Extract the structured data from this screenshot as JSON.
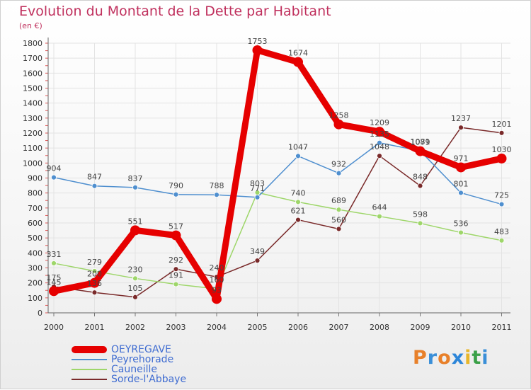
{
  "header": {
    "title": "Evolution du Montant de la Dette par Habitant",
    "subtitle": "(en €)"
  },
  "brand": {
    "letters": [
      "P",
      "r",
      "o",
      "x",
      "i",
      "t",
      "i"
    ],
    "colors": [
      "#e8802a",
      "#3a8fd8",
      "#e8802a",
      "#2d86d9",
      "#e8b62a",
      "#3aa048",
      "#3a8fd8"
    ]
  },
  "chart_data": {
    "type": "line",
    "title": "Evolution du Montant de la Dette par Habitant",
    "subtitle": "(en €)",
    "xlabel": "",
    "ylabel": "",
    "ylim": [
      0,
      1800
    ],
    "yticks": [
      0,
      100,
      200,
      300,
      400,
      500,
      600,
      700,
      800,
      900,
      1000,
      1100,
      1200,
      1300,
      1400,
      1500,
      1600,
      1700,
      1800
    ],
    "x": [
      "2000",
      "2001",
      "2002",
      "2003",
      "2004",
      "2005",
      "2006",
      "2007",
      "2008",
      "2009",
      "2010",
      "2011"
    ],
    "grid": true,
    "legend_position": "bottom-left",
    "series": [
      {
        "name": "OEYREGAVE",
        "color": "#e60000",
        "values": [
          145,
          200,
          551,
          517,
          93,
          1753,
          1674,
          1258,
          1209,
          1079,
          971,
          1030
        ],
        "labels": [
          "145",
          "200",
          "551",
          "517",
          "93",
          "1753",
          "1674",
          "1258",
          "1209",
          "1079",
          "971",
          "1030"
        ]
      },
      {
        "name": "Peyrehorade",
        "color": "#4f8fcf",
        "values": [
          904,
          847,
          837,
          790,
          788,
          771,
          1047,
          932,
          1135,
          1081,
          801,
          725
        ],
        "labels": [
          "904",
          "847",
          "837",
          "790",
          "788",
          "771",
          "1047",
          "932",
          "1135",
          "1081",
          "801",
          "725"
        ]
      },
      {
        "name": "Cauneille",
        "color": "#9ed66a",
        "values": [
          331,
          279,
          230,
          191,
          160,
          803,
          740,
          689,
          644,
          598,
          536,
          483
        ],
        "labels": [
          "331",
          "279",
          "230",
          "191",
          "160",
          "803",
          "740",
          "689",
          "644",
          "598",
          "536",
          "483"
        ]
      },
      {
        "name": "Sorde-l'Abbaye",
        "color": "#7a2a2a",
        "values": [
          175,
          136,
          105,
          292,
          240,
          349,
          621,
          560,
          1048,
          848,
          1237,
          1201
        ],
        "labels": [
          "175",
          "136",
          "105",
          "292",
          "240",
          "349",
          "621",
          "560",
          "1048",
          "848",
          "1237",
          "1201"
        ]
      }
    ]
  }
}
